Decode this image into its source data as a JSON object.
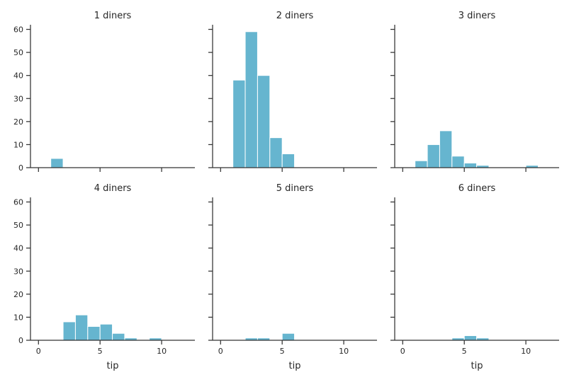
{
  "chart_data": {
    "type": "bar",
    "layout": "facet grid, 2 rows x 3 columns, shared axes",
    "xlabel": "tip",
    "ylabel": "",
    "xlim": [
      -0.65,
      12.7
    ],
    "ylim": [
      0,
      62
    ],
    "xticks": [
      0,
      5,
      10
    ],
    "yticks": [
      0,
      10,
      20,
      30,
      40,
      50,
      60
    ],
    "bin_edges": [
      1,
      2,
      3,
      4,
      5,
      6,
      7,
      8,
      9,
      10,
      11
    ],
    "grid": false,
    "color": "#66b5cf",
    "facets": [
      {
        "title": "1 diners",
        "counts": [
          4,
          0,
          0,
          0,
          0,
          0,
          0,
          0,
          0,
          0
        ]
      },
      {
        "title": "2 diners",
        "counts": [
          38,
          59,
          40,
          13,
          6,
          0,
          0,
          0,
          0,
          0
        ]
      },
      {
        "title": "3 diners",
        "counts": [
          3,
          10,
          16,
          5,
          2,
          1,
          0,
          0,
          0,
          1
        ]
      },
      {
        "title": "4 diners",
        "counts": [
          0,
          8,
          11,
          6,
          7,
          3,
          1,
          0,
          1,
          0
        ]
      },
      {
        "title": "5 diners",
        "counts": [
          0,
          1,
          1,
          0,
          3,
          0,
          0,
          0,
          0,
          0
        ]
      },
      {
        "title": "6 diners",
        "counts": [
          0,
          0,
          0,
          1,
          2,
          1,
          0,
          0,
          0,
          0
        ]
      }
    ]
  }
}
